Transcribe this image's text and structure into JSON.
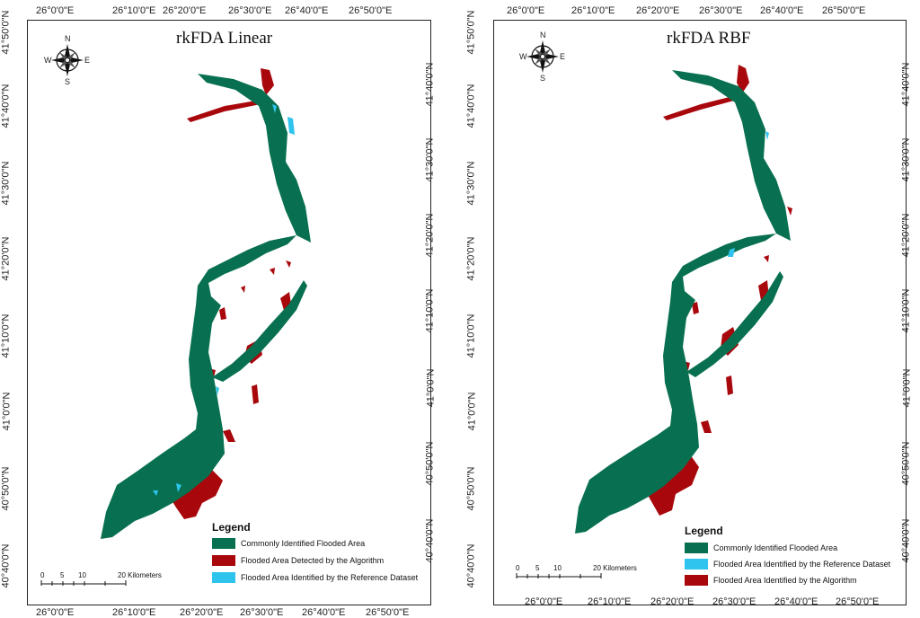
{
  "colors": {
    "common": "#087050",
    "algorithm": "#a8070c",
    "reference": "#2fc4ee",
    "frame": "#222222"
  },
  "compass": {
    "n": "N",
    "s": "S",
    "e": "E",
    "w": "W"
  },
  "panels": {
    "left": {
      "title": "rkFDA Linear",
      "lon_ticks_top": [
        "26°0'0\"E",
        "26°10'0\"E",
        "26°20'0\"E",
        "26°30'0\"E",
        "26°40'0\"E",
        "26°50'0\"E"
      ],
      "lon_ticks_bottom": [
        "26°0'0\"E",
        "26°10'0\"E",
        "26°20'0\"E",
        "26°30'0\"E",
        "26°40'0\"E",
        "26°50'0\"E"
      ],
      "lat_ticks_left": [
        "41°50'0\"N",
        "41°40'0\"N",
        "41°30'0\"N",
        "41°20'0\"N",
        "41°10'0\"N",
        "41°0'0\"N",
        "40°50'0\"N",
        "40°40'0\"N"
      ],
      "lat_ticks_right": [
        "41°40'0\"N",
        "41°30'0\"N",
        "41°20'0\"N",
        "41°10'0\"N",
        "41°0'0\"N",
        "40°50'0\"N",
        "40°40'0\"N"
      ],
      "legend": {
        "title": "Legend",
        "items": [
          {
            "label": "Commonly Identified Flooded Area",
            "color": "#087050"
          },
          {
            "label": "Flooded Area Detected by the Algorithm",
            "color": "#a8070c"
          },
          {
            "label": "Flooded Area Identified by the Reference Dataset",
            "color": "#2fc4ee"
          }
        ]
      },
      "scale": {
        "labels": [
          "0",
          "5",
          "10",
          "20 Kilometers"
        ]
      }
    },
    "right": {
      "title": "rkFDA RBF",
      "lon_ticks_top": [
        "26°0'0\"E",
        "26°10'0\"E",
        "26°20'0\"E",
        "26°30'0\"E",
        "26°40'0\"E",
        "26°50'0\"E"
      ],
      "lon_ticks_bottom": [
        "26°0'0\"E",
        "26°10'0\"E",
        "26°20'0\"E",
        "26°30'0\"E",
        "26°40'0\"E",
        "26°50'0\"E"
      ],
      "lat_ticks_left": [
        "41°50'0\"N",
        "41°40'0\"N",
        "41°30'0\"N",
        "41°20'0\"N",
        "41°10'0\"N",
        "41°0'0\"N",
        "40°50'0\"N",
        "40°40'0\"N"
      ],
      "lat_ticks_right": [
        "41°40'0\"N",
        "41°30'0\"N",
        "41°20'0\"N",
        "41°10'0\"N",
        "41°0'0\"N",
        "40°50'0\"N",
        "40°40'0\"N"
      ],
      "legend": {
        "title": "Legend",
        "items": [
          {
            "label": "Commonly Identified Flooded Area",
            "color": "#087050"
          },
          {
            "label": "Flooded Area Identified by the Reference Dataset",
            "color": "#2fc4ee"
          },
          {
            "label": "Flooded Area Identified by the Algorithm",
            "color": "#a8070c"
          }
        ]
      },
      "scale": {
        "labels": [
          "0",
          "5",
          "10",
          "20 Kilometers"
        ]
      }
    }
  }
}
